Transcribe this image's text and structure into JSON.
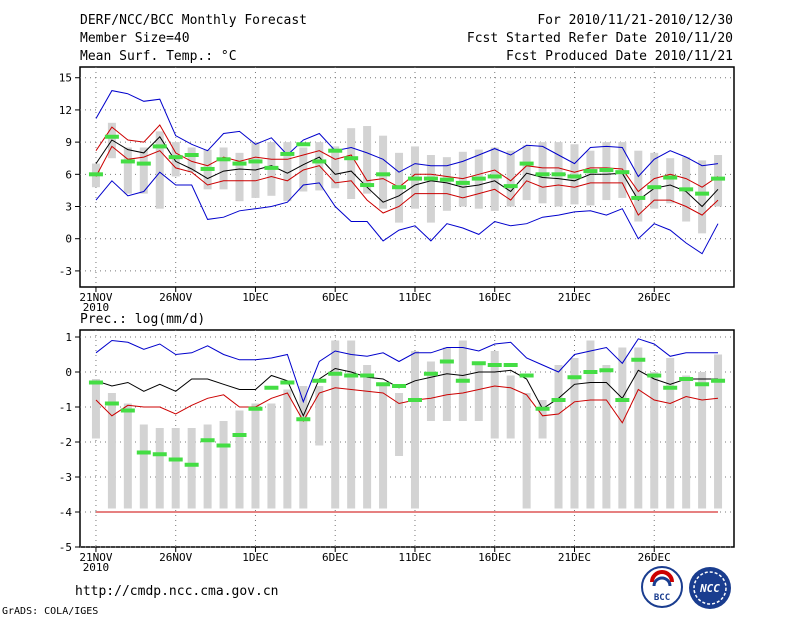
{
  "header": {
    "left": [
      "DERF/NCC/BCC Monthly Forecast",
      "Member Size=40",
      "Mean Surf. Temp.: °C"
    ],
    "right": [
      "For 2010/11/21-2010/12/30",
      "Fcst Started Refer Date 2010/11/20",
      "Fcst Produced Date 2010/11/21"
    ]
  },
  "footer": {
    "url": "http://cmdp.ncc.cma.gov.cn",
    "credit": "GrADS: COLA/IGES",
    "logo_text": "BCC",
    "logo_ncc_text": "NCC"
  },
  "colors": {
    "envelope": "#0000cc",
    "mean": "#000000",
    "spread": "#cc0000",
    "box": "#d3d3d3",
    "marker": "#44dd44"
  },
  "chart_data": [
    {
      "type": "box-line",
      "title": "Mean Surf. Temp.: °C",
      "x_ticks": [
        "21NOV",
        "26NOV",
        "1DEC",
        "6DEC",
        "11DEC",
        "16DEC",
        "21DEC",
        "26DEC"
      ],
      "x_tick_days": [
        1,
        6,
        11,
        16,
        21,
        26,
        31,
        36
      ],
      "x_year": "2010",
      "x_range": [
        0,
        41
      ],
      "ylim": [
        -4.5,
        16
      ],
      "y_ticks": [
        -3,
        0,
        3,
        6,
        9,
        12,
        15
      ],
      "days": [
        1,
        2,
        3,
        4,
        5,
        6,
        7,
        8,
        9,
        10,
        11,
        12,
        13,
        14,
        15,
        16,
        17,
        18,
        19,
        20,
        21,
        22,
        23,
        24,
        25,
        26,
        27,
        28,
        29,
        30,
        31,
        32,
        33,
        34,
        35,
        36,
        37,
        38,
        39,
        40
      ],
      "box_low": [
        4.8,
        7.5,
        4.2,
        4.2,
        2.8,
        5.8,
        6.2,
        4.6,
        4.6,
        3.5,
        3.8,
        4.0,
        3.5,
        4.4,
        4.5,
        4.7,
        3.7,
        4.2,
        2.8,
        1.5,
        2.8,
        1.5,
        2.6,
        3.0,
        2.8,
        2.6,
        3.0,
        3.6,
        3.3,
        3.0,
        3.2,
        3.1,
        3.6,
        3.8,
        1.6,
        2.8,
        3.3,
        1.6,
        0.5,
        3.0
      ],
      "box_high": [
        7.0,
        10.8,
        8.5,
        8.5,
        10.0,
        9.0,
        8.5,
        8.3,
        8.5,
        8.0,
        9.0,
        9.0,
        9.0,
        8.5,
        9.0,
        8.6,
        10.3,
        10.5,
        9.6,
        8.0,
        8.6,
        7.8,
        7.6,
        8.1,
        8.3,
        8.5,
        8.2,
        8.7,
        9.0,
        9.0,
        8.8,
        8.2,
        9.0,
        9.0,
        8.2,
        8.0,
        7.5,
        7.6,
        7.3,
        7.8
      ],
      "markers": [
        6.0,
        9.5,
        7.2,
        7.0,
        8.6,
        7.6,
        7.8,
        6.5,
        7.4,
        7.0,
        7.2,
        6.6,
        7.9,
        8.8,
        7.2,
        8.2,
        7.5,
        5.0,
        6.0,
        4.8,
        5.6,
        5.6,
        5.5,
        5.2,
        5.6,
        5.8,
        4.9,
        7.0,
        6.0,
        6.0,
        5.8,
        6.3,
        6.4,
        6.2,
        3.8,
        4.8,
        5.7,
        4.6,
        4.2,
        5.6
      ],
      "series": [
        {
          "name": "upper",
          "values": [
            11.2,
            13.8,
            13.5,
            12.8,
            13.0,
            9.6,
            8.8,
            8.2,
            9.8,
            10.0,
            8.8,
            9.4,
            7.8,
            9.2,
            9.8,
            8.2,
            8.5,
            8.0,
            7.4,
            6.2,
            7.0,
            6.8,
            6.8,
            7.2,
            7.8,
            8.4,
            7.8,
            8.7,
            8.6,
            7.8,
            7.0,
            8.5,
            8.6,
            8.5,
            5.8,
            7.4,
            8.2,
            7.6,
            6.8,
            7.0
          ]
        },
        {
          "name": "p80",
          "values": [
            8.2,
            10.4,
            9.2,
            9.0,
            10.6,
            8.0,
            7.2,
            6.8,
            7.6,
            7.2,
            7.6,
            7.4,
            7.4,
            7.8,
            8.2,
            7.4,
            7.8,
            5.4,
            5.6,
            4.8,
            6.0,
            6.0,
            5.8,
            5.6,
            6.0,
            6.4,
            5.4,
            6.8,
            6.6,
            6.6,
            6.2,
            6.6,
            6.6,
            6.5,
            4.4,
            5.6,
            6.0,
            5.6,
            4.8,
            5.8
          ]
        },
        {
          "name": "mean",
          "values": [
            7.0,
            9.2,
            8.3,
            8.0,
            9.5,
            7.2,
            6.5,
            5.6,
            6.3,
            6.5,
            6.4,
            6.8,
            6.1,
            6.9,
            7.6,
            6.0,
            6.3,
            4.8,
            3.4,
            4.0,
            5.0,
            5.4,
            5.2,
            4.8,
            5.0,
            5.4,
            4.4,
            6.1,
            5.7,
            5.6,
            5.4,
            6.0,
            6.0,
            6.1,
            3.6,
            4.7,
            5.0,
            4.4,
            3.0,
            4.6
          ]
        },
        {
          "name": "p20",
          "values": [
            5.8,
            8.6,
            7.4,
            7.6,
            8.2,
            6.6,
            6.2,
            5.0,
            5.4,
            5.4,
            5.4,
            5.8,
            5.4,
            6.4,
            6.8,
            5.2,
            5.4,
            3.6,
            2.4,
            3.0,
            4.2,
            4.2,
            4.2,
            3.8,
            4.2,
            4.6,
            3.6,
            5.4,
            4.8,
            5.0,
            4.8,
            5.2,
            5.2,
            5.2,
            2.2,
            3.6,
            3.6,
            3.0,
            2.2,
            3.6
          ]
        },
        {
          "name": "lower",
          "values": [
            3.6,
            5.4,
            4.0,
            4.4,
            6.2,
            5.0,
            5.0,
            1.8,
            2.0,
            2.6,
            2.8,
            3.0,
            3.4,
            5.0,
            5.2,
            3.0,
            1.6,
            1.6,
            -0.2,
            0.8,
            1.2,
            -0.2,
            1.4,
            1.0,
            0.4,
            1.6,
            1.2,
            1.4,
            2.0,
            2.2,
            2.5,
            2.6,
            2.2,
            2.8,
            0.0,
            1.4,
            0.8,
            -0.4,
            -1.4,
            1.4
          ]
        }
      ]
    },
    {
      "type": "box-line",
      "title": "Prec.: log(mm/d)",
      "x_ticks": [
        "21NOV",
        "26NOV",
        "1DEC",
        "6DEC",
        "11DEC",
        "16DEC",
        "21DEC",
        "26DEC"
      ],
      "x_tick_days": [
        1,
        6,
        11,
        16,
        21,
        26,
        31,
        36
      ],
      "x_year": "2010",
      "x_range": [
        0,
        41
      ],
      "ylim": [
        -5,
        1.2
      ],
      "y_ticks": [
        -5,
        -4,
        -3,
        -2,
        -1,
        0,
        1
      ],
      "days": [
        1,
        2,
        3,
        4,
        5,
        6,
        7,
        8,
        9,
        10,
        11,
        12,
        13,
        14,
        15,
        16,
        17,
        18,
        19,
        20,
        21,
        22,
        23,
        24,
        25,
        26,
        27,
        28,
        29,
        30,
        31,
        32,
        33,
        34,
        35,
        36,
        37,
        38,
        39,
        40
      ],
      "box_low": [
        -1.9,
        -3.9,
        -3.9,
        -3.9,
        -3.9,
        -3.9,
        -3.9,
        -3.9,
        -3.9,
        -3.9,
        -3.9,
        -3.9,
        -3.9,
        -3.9,
        -2.1,
        -3.9,
        -3.9,
        -3.9,
        -3.9,
        -2.4,
        -3.9,
        -1.4,
        -1.4,
        -1.4,
        -1.4,
        -1.9,
        -1.9,
        -3.9,
        -1.9,
        -3.9,
        -3.9,
        -3.9,
        -3.9,
        -3.9,
        -3.9,
        -3.9,
        -3.9,
        -3.9,
        -3.9,
        -3.9
      ],
      "box_high": [
        -0.2,
        -0.6,
        -0.9,
        -1.5,
        -1.6,
        -1.6,
        -1.6,
        -1.5,
        -1.4,
        -1.1,
        -0.9,
        -0.9,
        -0.5,
        -0.4,
        -0.4,
        0.9,
        0.9,
        0.2,
        -0.4,
        -0.6,
        0.6,
        0.3,
        0.7,
        0.9,
        0.3,
        0.6,
        -0.1,
        -0.6,
        -0.8,
        0.2,
        0.4,
        0.9,
        0.2,
        0.7,
        0.7,
        0.0,
        0.4,
        -0.1,
        0.0,
        0.5
      ],
      "markers": [
        -0.3,
        -0.9,
        -1.1,
        -2.3,
        -2.35,
        -2.5,
        -2.65,
        -1.95,
        -2.1,
        -1.8,
        -1.05,
        -0.45,
        -0.3,
        -1.35,
        -0.25,
        -0.05,
        -0.1,
        -0.1,
        -0.35,
        -0.4,
        -0.8,
        -0.05,
        0.3,
        -0.25,
        0.25,
        0.2,
        0.2,
        -0.1,
        -1.05,
        -0.8,
        -0.15,
        0.0,
        0.05,
        -0.8,
        0.35,
        -0.1,
        -0.45,
        -0.2,
        -0.35,
        -0.25
      ],
      "series": [
        {
          "name": "upper",
          "values": [
            0.55,
            0.9,
            0.85,
            0.65,
            0.8,
            0.5,
            0.55,
            0.75,
            0.5,
            0.35,
            0.35,
            0.4,
            0.5,
            -0.85,
            0.3,
            0.6,
            0.5,
            0.45,
            0.55,
            0.3,
            0.55,
            0.55,
            0.7,
            0.7,
            0.6,
            0.8,
            0.85,
            0.4,
            0.2,
            0.0,
            0.5,
            0.6,
            0.7,
            0.25,
            0.95,
            0.8,
            0.45,
            0.55,
            0.55,
            0.55
          ]
        },
        {
          "name": "mean",
          "values": [
            -0.25,
            -0.4,
            -0.3,
            -0.55,
            -0.35,
            -0.55,
            -0.2,
            -0.2,
            -0.35,
            -0.5,
            -0.5,
            -0.1,
            -0.25,
            -1.25,
            -0.2,
            0.1,
            0.0,
            -0.15,
            -0.2,
            -0.45,
            -0.25,
            -0.15,
            -0.05,
            -0.1,
            0.0,
            0.0,
            0.05,
            -0.2,
            -1.05,
            -0.75,
            -0.35,
            -0.3,
            -0.3,
            -0.75,
            0.05,
            -0.2,
            -0.35,
            -0.2,
            -0.2,
            -0.2
          ]
        },
        {
          "name": "p20",
          "values": [
            -0.8,
            -1.25,
            -0.95,
            -1.0,
            -1.0,
            -1.2,
            -0.95,
            -0.75,
            -0.65,
            -1.0,
            -1.0,
            -0.75,
            -0.6,
            -1.4,
            -0.6,
            -0.45,
            -0.5,
            -0.55,
            -0.6,
            -0.9,
            -0.8,
            -0.75,
            -0.65,
            -0.6,
            -0.5,
            -0.4,
            -0.45,
            -0.65,
            -1.25,
            -1.2,
            -0.85,
            -0.8,
            -0.8,
            -1.45,
            -0.5,
            -0.8,
            -0.9,
            -0.7,
            -0.8,
            -0.75
          ]
        },
        {
          "name": "floor",
          "values": [
            -4,
            -4,
            -4,
            -4,
            -4,
            -4,
            -4,
            -4,
            -4,
            -4,
            -4,
            -4,
            -4,
            -4,
            -4,
            -4,
            -4,
            -4,
            -4,
            -4,
            -4,
            -4,
            -4,
            -4,
            -4,
            -4,
            -4,
            -4,
            -4,
            -4,
            -4,
            -4,
            -4,
            -4,
            -4,
            -4,
            -4,
            -4,
            -4,
            -4
          ]
        }
      ]
    }
  ]
}
